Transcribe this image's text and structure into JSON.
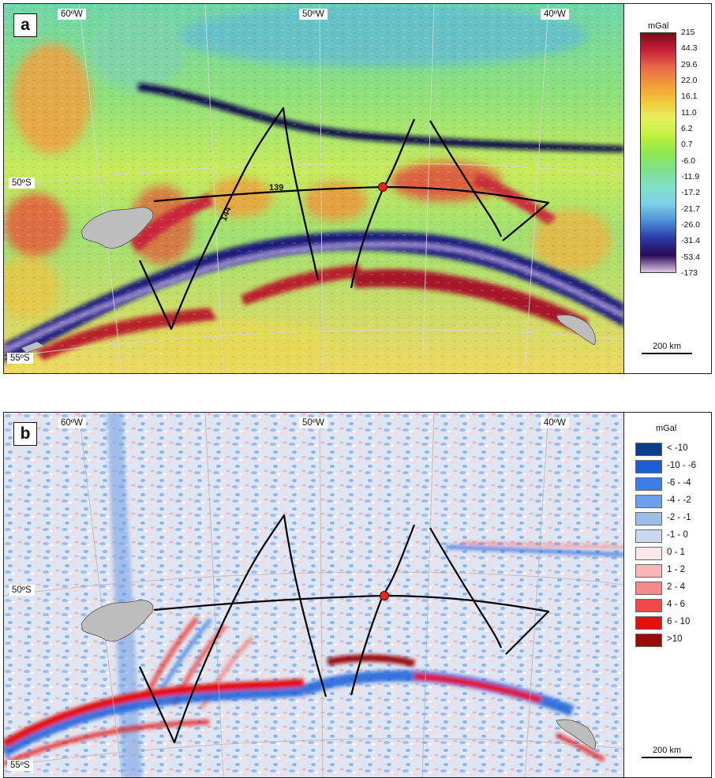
{
  "panels": [
    {
      "letter": "a",
      "longitude_labels": [
        "60ºW",
        "50ºW",
        "40ºW"
      ],
      "latitude_labels": [
        "50ºS",
        "55ºS"
      ],
      "profile_labels": [
        "139",
        "144"
      ],
      "legend": {
        "unit": "mGal",
        "type": "continuous-colorbar",
        "ticks": [
          "215",
          "44.3",
          "29.6",
          "22.0",
          "16.1",
          "11.0",
          "6.2",
          "0.7",
          "-6.0",
          "-11.9",
          "-17.2",
          "-21.7",
          "-26.0",
          "-31.4",
          "-53.4",
          "-173"
        ],
        "colors": [
          "#e0c8e6",
          "#2a0a57",
          "#2c3aa8",
          "#4e8ed8",
          "#7fd0e8",
          "#7fe0c8",
          "#7fe08a",
          "#8ee84e",
          "#bff040",
          "#e8f060",
          "#f2c83a",
          "#f29a3a",
          "#e86a4a",
          "#c8203a",
          "#7a0a1a"
        ]
      },
      "scale_bar": "200 km",
      "colors": {
        "red_marker": "#e8241c",
        "profile_line": "#000000",
        "land": "#bdbdbd"
      }
    },
    {
      "letter": "b",
      "longitude_labels": [
        "60ºW",
        "50ºW",
        "40ºW"
      ],
      "latitude_labels": [
        "50ºS",
        "55ºS"
      ],
      "legend": {
        "unit": "mGal",
        "type": "classed",
        "classes": [
          {
            "label": "< -10",
            "color": "#0a3e8c"
          },
          {
            "label": "-10 - -6",
            "color": "#1a5fd8"
          },
          {
            "label": "-6 - -4",
            "color": "#3d7ee6"
          },
          {
            "label": "-4 - -2",
            "color": "#6d9ee8"
          },
          {
            "label": "-2 - -1",
            "color": "#9dbcec"
          },
          {
            "label": "-1 - 0",
            "color": "#c8d8ee"
          },
          {
            "label": "0 - 1",
            "color": "#fde6e6"
          },
          {
            "label": "1 - 2",
            "color": "#f8b6b6"
          },
          {
            "label": "2 - 4",
            "color": "#f48a8a"
          },
          {
            "label": "4 - 6",
            "color": "#ee4a4a"
          },
          {
            "label": "6 - 10",
            "color": "#e41010"
          },
          {
            "label": ">10",
            "color": "#9a0a0a"
          }
        ]
      },
      "scale_bar": "200 km",
      "colors": {
        "red_marker": "#e8241c",
        "profile_line": "#000000",
        "land": "#bdbdbd"
      }
    }
  ]
}
